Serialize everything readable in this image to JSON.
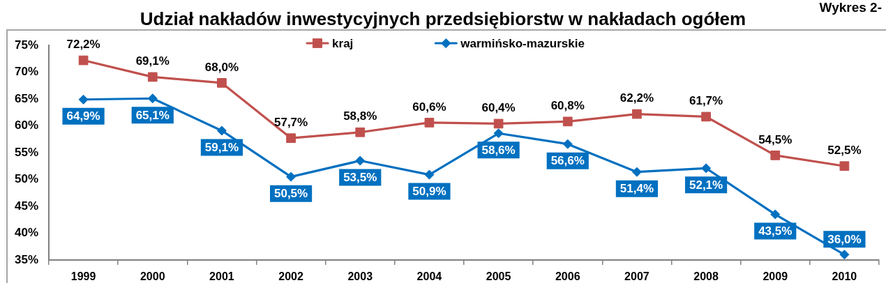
{
  "chart_data": {
    "type": "line",
    "title": "Udział nakładów inwestycyjnych przedsiębiorstw w nakładach ogółem",
    "annotations": [
      "Wykres 2-"
    ],
    "categories": [
      "1999",
      "2000",
      "2001",
      "2002",
      "2003",
      "2004",
      "2005",
      "2006",
      "2007",
      "2008",
      "2009",
      "2010"
    ],
    "series": [
      {
        "name": "kraj",
        "color": "#c0504d",
        "marker": "square",
        "values": [
          72.2,
          69.1,
          68.0,
          57.7,
          58.8,
          60.6,
          60.4,
          60.8,
          62.2,
          61.7,
          54.5,
          52.5
        ],
        "value_labels": [
          "72,2%",
          "69,1%",
          "68,0%",
          "57,7%",
          "58,8%",
          "60,6%",
          "60,4%",
          "60,8%",
          "62,2%",
          "61,7%",
          "54,5%",
          "52,5%"
        ]
      },
      {
        "name": "warmińsko-mazurskie",
        "color": "#0070c0",
        "marker": "diamond",
        "values": [
          64.9,
          65.1,
          59.1,
          50.5,
          53.5,
          50.9,
          58.6,
          56.6,
          51.4,
          52.1,
          43.5,
          36.0
        ],
        "value_labels": [
          "64,9%",
          "65,1%",
          "59,1%",
          "50,5%",
          "53,5%",
          "50,9%",
          "58,6%",
          "56,6%",
          "51,4%",
          "52,1%",
          "43,5%",
          "36,0%"
        ]
      }
    ],
    "ylim": [
      35,
      75
    ],
    "yticks": [
      {
        "value": 35,
        "label": "35%"
      },
      {
        "value": 40,
        "label": "40%"
      },
      {
        "value": 45,
        "label": "45%"
      },
      {
        "value": 50,
        "label": "50%"
      },
      {
        "value": 55,
        "label": "55%"
      },
      {
        "value": 60,
        "label": "60%"
      },
      {
        "value": 65,
        "label": "65%"
      },
      {
        "value": 70,
        "label": "70%"
      },
      {
        "value": 75,
        "label": "75%"
      }
    ],
    "legend": "top"
  }
}
